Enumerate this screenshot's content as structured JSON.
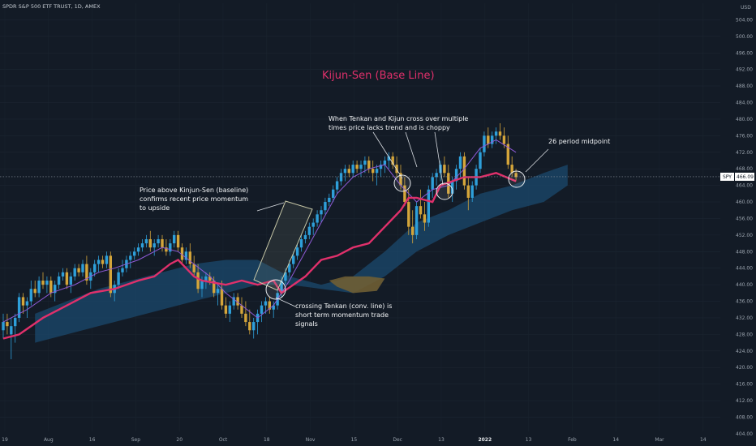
{
  "header": {
    "symbol_title": "SPDR S&P 500 ETF TRUST, 1D, AMEX"
  },
  "chart_data": {
    "type": "candlestick",
    "title": "Kijun-Sen (Base Line)",
    "currency": "USD",
    "last_price": {
      "symbol": "SPY",
      "value": "466.09"
    },
    "y_axis": {
      "min": 403,
      "max": 508,
      "ticks": [
        404,
        408,
        412,
        416,
        420,
        424,
        428,
        432,
        436,
        440,
        444,
        448,
        452,
        456,
        460,
        464,
        468,
        472,
        476,
        480,
        484,
        488,
        492,
        496,
        500,
        504
      ]
    },
    "x_axis": {
      "labels": [
        "19",
        "Aug",
        "16",
        "Sep",
        "20",
        "Oct",
        "18",
        "Nov",
        "15",
        "Dec",
        "13",
        "2022",
        "13",
        "Feb",
        "14",
        "Mar",
        "14"
      ],
      "highlighted": "2022",
      "crosshair_label": "2022"
    },
    "candles": [
      [
        429,
        433,
        427,
        431
      ],
      [
        431,
        433,
        428,
        430
      ],
      [
        428,
        432,
        422,
        430
      ],
      [
        430,
        433,
        426,
        432
      ],
      [
        432,
        438,
        431,
        437
      ],
      [
        437,
        438,
        433,
        435
      ],
      [
        435,
        437,
        432,
        436
      ],
      [
        436,
        441,
        435,
        439
      ],
      [
        439,
        441,
        437,
        438
      ],
      [
        438,
        442,
        437,
        441
      ],
      [
        441,
        443,
        439,
        440
      ],
      [
        440,
        442,
        438,
        441
      ],
      [
        441,
        442,
        437,
        438
      ],
      [
        438,
        441,
        436,
        440
      ],
      [
        440,
        443,
        439,
        442
      ],
      [
        442,
        444,
        441,
        443
      ],
      [
        443,
        444,
        439,
        440
      ],
      [
        440,
        443,
        438,
        442
      ],
      [
        442,
        445,
        441,
        444
      ],
      [
        444,
        445,
        442,
        443
      ],
      [
        443,
        446,
        442,
        445
      ],
      [
        445,
        447,
        440,
        441
      ],
      [
        441,
        444,
        439,
        443
      ],
      [
        443,
        446,
        442,
        445
      ],
      [
        445,
        447,
        443,
        446
      ],
      [
        446,
        447,
        444,
        445
      ],
      [
        445,
        448,
        444,
        447
      ],
      [
        447,
        448,
        437,
        438
      ],
      [
        438,
        441,
        436,
        440
      ],
      [
        440,
        444,
        439,
        443
      ],
      [
        443,
        446,
        442,
        444
      ],
      [
        444,
        447,
        443,
        446
      ],
      [
        446,
        448,
        444,
        447
      ],
      [
        447,
        449,
        446,
        448
      ],
      [
        448,
        450,
        447,
        449
      ],
      [
        449,
        451,
        448,
        450
      ],
      [
        450,
        452,
        449,
        451
      ],
      [
        451,
        453,
        448,
        449
      ],
      [
        449,
        451,
        447,
        450
      ],
      [
        450,
        452,
        449,
        451
      ],
      [
        451,
        452,
        448,
        449
      ],
      [
        449,
        451,
        447,
        448
      ],
      [
        448,
        451,
        447,
        450
      ],
      [
        450,
        453,
        449,
        452
      ],
      [
        452,
        453,
        448,
        449
      ],
      [
        449,
        450,
        445,
        446
      ],
      [
        446,
        449,
        445,
        448
      ],
      [
        448,
        450,
        444,
        445
      ],
      [
        445,
        447,
        442,
        443
      ],
      [
        443,
        445,
        438,
        439
      ],
      [
        439,
        442,
        437,
        441
      ],
      [
        441,
        443,
        439,
        442
      ],
      [
        442,
        443,
        440,
        441
      ],
      [
        441,
        442,
        437,
        438
      ],
      [
        438,
        440,
        435,
        439
      ],
      [
        439,
        441,
        434,
        435
      ],
      [
        435,
        437,
        432,
        433
      ],
      [
        433,
        436,
        431,
        435
      ],
      [
        435,
        438,
        434,
        437
      ],
      [
        437,
        438,
        434,
        435
      ],
      [
        435,
        437,
        432,
        433
      ],
      [
        433,
        436,
        430,
        431
      ],
      [
        431,
        434,
        428,
        429
      ],
      [
        429,
        432,
        427,
        431
      ],
      [
        431,
        434,
        428,
        433
      ],
      [
        433,
        436,
        431,
        435
      ],
      [
        435,
        437,
        433,
        436
      ],
      [
        436,
        437,
        433,
        434
      ],
      [
        434,
        436,
        432,
        435
      ],
      [
        435,
        439,
        434,
        438
      ],
      [
        438,
        442,
        437,
        441
      ],
      [
        441,
        444,
        440,
        443
      ],
      [
        443,
        446,
        442,
        445
      ],
      [
        445,
        448,
        444,
        447
      ],
      [
        447,
        450,
        446,
        449
      ],
      [
        449,
        452,
        448,
        451
      ],
      [
        451,
        453,
        450,
        452
      ],
      [
        452,
        455,
        451,
        454
      ],
      [
        454,
        456,
        452,
        455
      ],
      [
        455,
        458,
        454,
        457
      ],
      [
        457,
        459,
        455,
        458
      ],
      [
        458,
        461,
        457,
        460
      ],
      [
        460,
        462,
        459,
        461
      ],
      [
        461,
        464,
        460,
        463
      ],
      [
        463,
        466,
        462,
        465
      ],
      [
        465,
        468,
        464,
        467
      ],
      [
        467,
        469,
        465,
        468
      ],
      [
        468,
        469,
        466,
        467
      ],
      [
        467,
        470,
        466,
        469
      ],
      [
        469,
        470,
        467,
        468
      ],
      [
        468,
        470,
        466,
        469
      ],
      [
        469,
        471,
        467,
        470
      ],
      [
        470,
        471,
        467,
        468
      ],
      [
        468,
        470,
        465,
        467
      ],
      [
        467,
        469,
        464,
        468
      ],
      [
        468,
        470,
        466,
        469
      ],
      [
        469,
        471,
        467,
        470
      ],
      [
        470,
        472,
        468,
        471
      ],
      [
        471,
        472,
        468,
        469
      ],
      [
        469,
        471,
        466,
        467
      ],
      [
        467,
        469,
        463,
        464
      ],
      [
        464,
        466,
        459,
        460
      ],
      [
        460,
        463,
        452,
        454
      ],
      [
        454,
        458,
        450,
        452
      ],
      [
        452,
        460,
        451,
        459
      ],
      [
        459,
        463,
        456,
        457
      ],
      [
        457,
        460,
        453,
        455
      ],
      [
        455,
        464,
        454,
        463
      ],
      [
        463,
        467,
        461,
        466
      ],
      [
        466,
        468,
        464,
        467
      ],
      [
        467,
        470,
        465,
        469
      ],
      [
        469,
        471,
        466,
        467
      ],
      [
        467,
        469,
        461,
        462
      ],
      [
        462,
        466,
        460,
        465
      ],
      [
        465,
        469,
        463,
        468
      ],
      [
        468,
        472,
        466,
        471
      ],
      [
        471,
        472,
        463,
        464
      ],
      [
        464,
        466,
        458,
        461
      ],
      [
        461,
        465,
        460,
        464
      ],
      [
        464,
        469,
        463,
        468
      ],
      [
        468,
        473,
        467,
        472
      ],
      [
        472,
        477,
        471,
        476
      ],
      [
        476,
        478,
        473,
        474
      ],
      [
        474,
        477,
        473,
        476
      ],
      [
        476,
        478,
        474,
        477
      ],
      [
        477,
        479,
        475,
        476
      ],
      [
        476,
        478,
        473,
        474
      ],
      [
        474,
        476,
        468,
        469
      ],
      [
        469,
        471,
        466,
        467
      ],
      [
        467,
        468,
        465,
        466
      ]
    ],
    "kijun_sen": [
      [
        0,
        427
      ],
      [
        4,
        428
      ],
      [
        10,
        432
      ],
      [
        14,
        434
      ],
      [
        18,
        436
      ],
      [
        22,
        438
      ],
      [
        28,
        439
      ],
      [
        34,
        441
      ],
      [
        38,
        442
      ],
      [
        42,
        445
      ],
      [
        44,
        446
      ],
      [
        46,
        444
      ],
      [
        48,
        442
      ],
      [
        50,
        441
      ],
      [
        56,
        440
      ],
      [
        60,
        441
      ],
      [
        64,
        440
      ],
      [
        68,
        441
      ],
      [
        70,
        438
      ],
      [
        73,
        440
      ],
      [
        76,
        442
      ],
      [
        78,
        444
      ],
      [
        80,
        446
      ],
      [
        84,
        447
      ],
      [
        88,
        449
      ],
      [
        92,
        450
      ],
      [
        96,
        454
      ],
      [
        100,
        458
      ],
      [
        102,
        461
      ],
      [
        104,
        461
      ],
      [
        108,
        460
      ],
      [
        110,
        464
      ],
      [
        116,
        466
      ],
      [
        120,
        466
      ],
      [
        124,
        467
      ],
      [
        129,
        465
      ]
    ],
    "tenkan_sen": [
      [
        0,
        431
      ],
      [
        6,
        434
      ],
      [
        12,
        438
      ],
      [
        18,
        440
      ],
      [
        24,
        443
      ],
      [
        28,
        444
      ],
      [
        34,
        446
      ],
      [
        40,
        449
      ],
      [
        44,
        448
      ],
      [
        48,
        445
      ],
      [
        52,
        442
      ],
      [
        56,
        438
      ],
      [
        60,
        435
      ],
      [
        64,
        432
      ],
      [
        68,
        435
      ],
      [
        72,
        441
      ],
      [
        76,
        448
      ],
      [
        80,
        455
      ],
      [
        84,
        462
      ],
      [
        88,
        466
      ],
      [
        92,
        468
      ],
      [
        96,
        469
      ],
      [
        100,
        464
      ],
      [
        104,
        460
      ],
      [
        108,
        463
      ],
      [
        112,
        464
      ],
      [
        116,
        468
      ],
      [
        120,
        473
      ],
      [
        124,
        475
      ],
      [
        129,
        472
      ]
    ],
    "cloud": [
      [
        8,
        426,
        433
      ],
      [
        16,
        428,
        436
      ],
      [
        24,
        430,
        439
      ],
      [
        32,
        432,
        441
      ],
      [
        40,
        434,
        443
      ],
      [
        48,
        436,
        445
      ],
      [
        56,
        438,
        446
      ],
      [
        64,
        440,
        446
      ],
      [
        72,
        440,
        442
      ],
      [
        80,
        439,
        440
      ],
      [
        88,
        438,
        442
      ],
      [
        96,
        442,
        448
      ],
      [
        104,
        448,
        455
      ],
      [
        112,
        452,
        458
      ],
      [
        120,
        455,
        462
      ],
      [
        128,
        458,
        464
      ],
      [
        136,
        460,
        467
      ],
      [
        142,
        464,
        469
      ]
    ],
    "annotations": [
      {
        "id": "baseline",
        "lines": [
          "Price above Kinjun-Sen (baseline)",
          "confirms recent price momentum",
          "to upside"
        ]
      },
      {
        "id": "cross",
        "lines": [
          "When Tenkan and Kijun cross over multiple",
          "times price lacks trend and is choppy"
        ]
      },
      {
        "id": "midpoint",
        "lines": [
          "26 period midpoint"
        ]
      },
      {
        "id": "tenkan",
        "lines": [
          "crossing Tenkan (conv. line) is",
          "short term momentum trade",
          "signals"
        ]
      }
    ],
    "colors": {
      "up": "#2e9fd9",
      "down": "#d4a53a",
      "kijun": "#e0306b",
      "tenkan": "#8e5ad6",
      "cloud_bull": "#1b4a6e",
      "cloud_bear": "#6f5e34",
      "background": "#131b26"
    }
  }
}
